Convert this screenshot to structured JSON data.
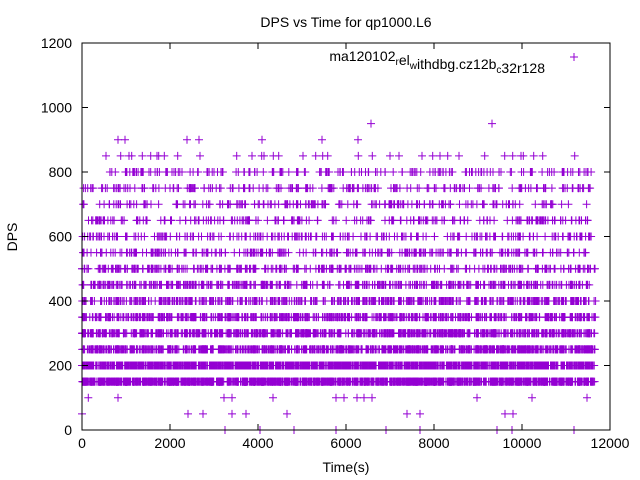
{
  "chart_data": {
    "type": "scatter",
    "title": "DPS vs Time for qp1000.L6",
    "xlabel": "Time(s)",
    "ylabel": "DPS",
    "xlim": [
      0,
      12000
    ],
    "ylim": [
      0,
      1200
    ],
    "xticks": [
      "0",
      "2000",
      "4000",
      "6000",
      "8000",
      "10000",
      "12000"
    ],
    "xtick_values": [
      0,
      2000,
      4000,
      6000,
      8000,
      10000,
      12000
    ],
    "yticks": [
      "0",
      "200",
      "400",
      "600",
      "800",
      "1000",
      "1200"
    ],
    "ytick_values": [
      0,
      200,
      400,
      600,
      800,
      1000,
      1200
    ],
    "grid": false,
    "legend_position": "top-right",
    "color": "#9400d3",
    "series": [
      {
        "name": "ma120102_rel_withdbg.cz12b_c32r128",
        "marker": "plus",
        "sparse_points": [
          {
            "y": 0,
            "x": [
              3250,
              4045,
              4818,
              5773,
              6909,
              7682,
              9432,
              9773,
              11182
            ]
          },
          {
            "y": 50,
            "x": [
              0,
              2409,
              2750,
              3409,
              3727,
              4659,
              7386,
              7682,
              9614,
              9795
            ]
          },
          {
            "y": 100,
            "x": [
              144,
              818,
              3227,
              3409,
              4341,
              5773,
              5955,
              6250,
              6409,
              6591,
              8977,
              10227,
              11477
            ]
          },
          {
            "y": 850,
            "x": [
              545,
              880,
              1068,
              1130,
              1370,
              1561,
              1705,
              1743,
              1870,
              2175,
              2682,
              3516,
              3864,
              4084,
              4136,
              4348,
              4470,
              5023,
              5311,
              5470,
              5584,
              6280,
              6598,
              7000,
              7205,
              7727,
              7970,
              8136,
              8311,
              8568,
              9152,
              9607,
              9789,
              9977,
              10030,
              10266,
              10470,
              11198
            ]
          },
          {
            "y": 900,
            "x": [
              818,
              977,
              2386,
              2659,
              4091,
              5455,
              6273
            ]
          },
          {
            "y": 950,
            "x": [
              6568,
              9318
            ]
          }
        ],
        "dense_levels": [
          {
            "y": 150,
            "x_range": [
              0,
              11650
            ],
            "approx_points": 1600
          },
          {
            "y": 200,
            "x_range": [
              0,
              11650
            ],
            "approx_points": 1600
          },
          {
            "y": 250,
            "x_range": [
              0,
              11680
            ],
            "approx_points": 900
          },
          {
            "y": 300,
            "x_range": [
              0,
              11680
            ],
            "approx_points": 800
          },
          {
            "y": 350,
            "x_range": [
              0,
              11680
            ],
            "approx_points": 650
          },
          {
            "y": 400,
            "x_range": [
              0,
              11680
            ],
            "approx_points": 550
          },
          {
            "y": 450,
            "x_range": [
              0,
              11650
            ],
            "approx_points": 420
          },
          {
            "y": 500,
            "x_range": [
              0,
              11680
            ],
            "approx_points": 330
          },
          {
            "y": 550,
            "x_range": [
              0,
              11600
            ],
            "approx_points": 260
          },
          {
            "y": 600,
            "x_range": [
              0,
              11680
            ],
            "approx_points": 230
          },
          {
            "y": 650,
            "x_range": [
              100,
              11650
            ],
            "approx_points": 200
          },
          {
            "y": 700,
            "x_range": [
              0,
              11650
            ],
            "approx_points": 180
          },
          {
            "y": 750,
            "x_range": [
              0,
              11700
            ],
            "approx_points": 200
          },
          {
            "y": 800,
            "x_range": [
              600,
              11650
            ],
            "approx_points": 170
          }
        ]
      }
    ]
  }
}
